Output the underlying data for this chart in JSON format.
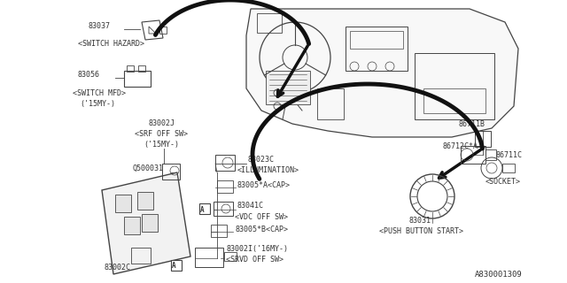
{
  "bg_color": "#ffffff",
  "line_color": "#444444",
  "text_color": "#333333",
  "diagram_id": "A830001309",
  "figsize": [
    6.4,
    3.2
  ],
  "dpi": 100,
  "xlim": [
    0,
    640
  ],
  "ylim": [
    0,
    320
  ]
}
